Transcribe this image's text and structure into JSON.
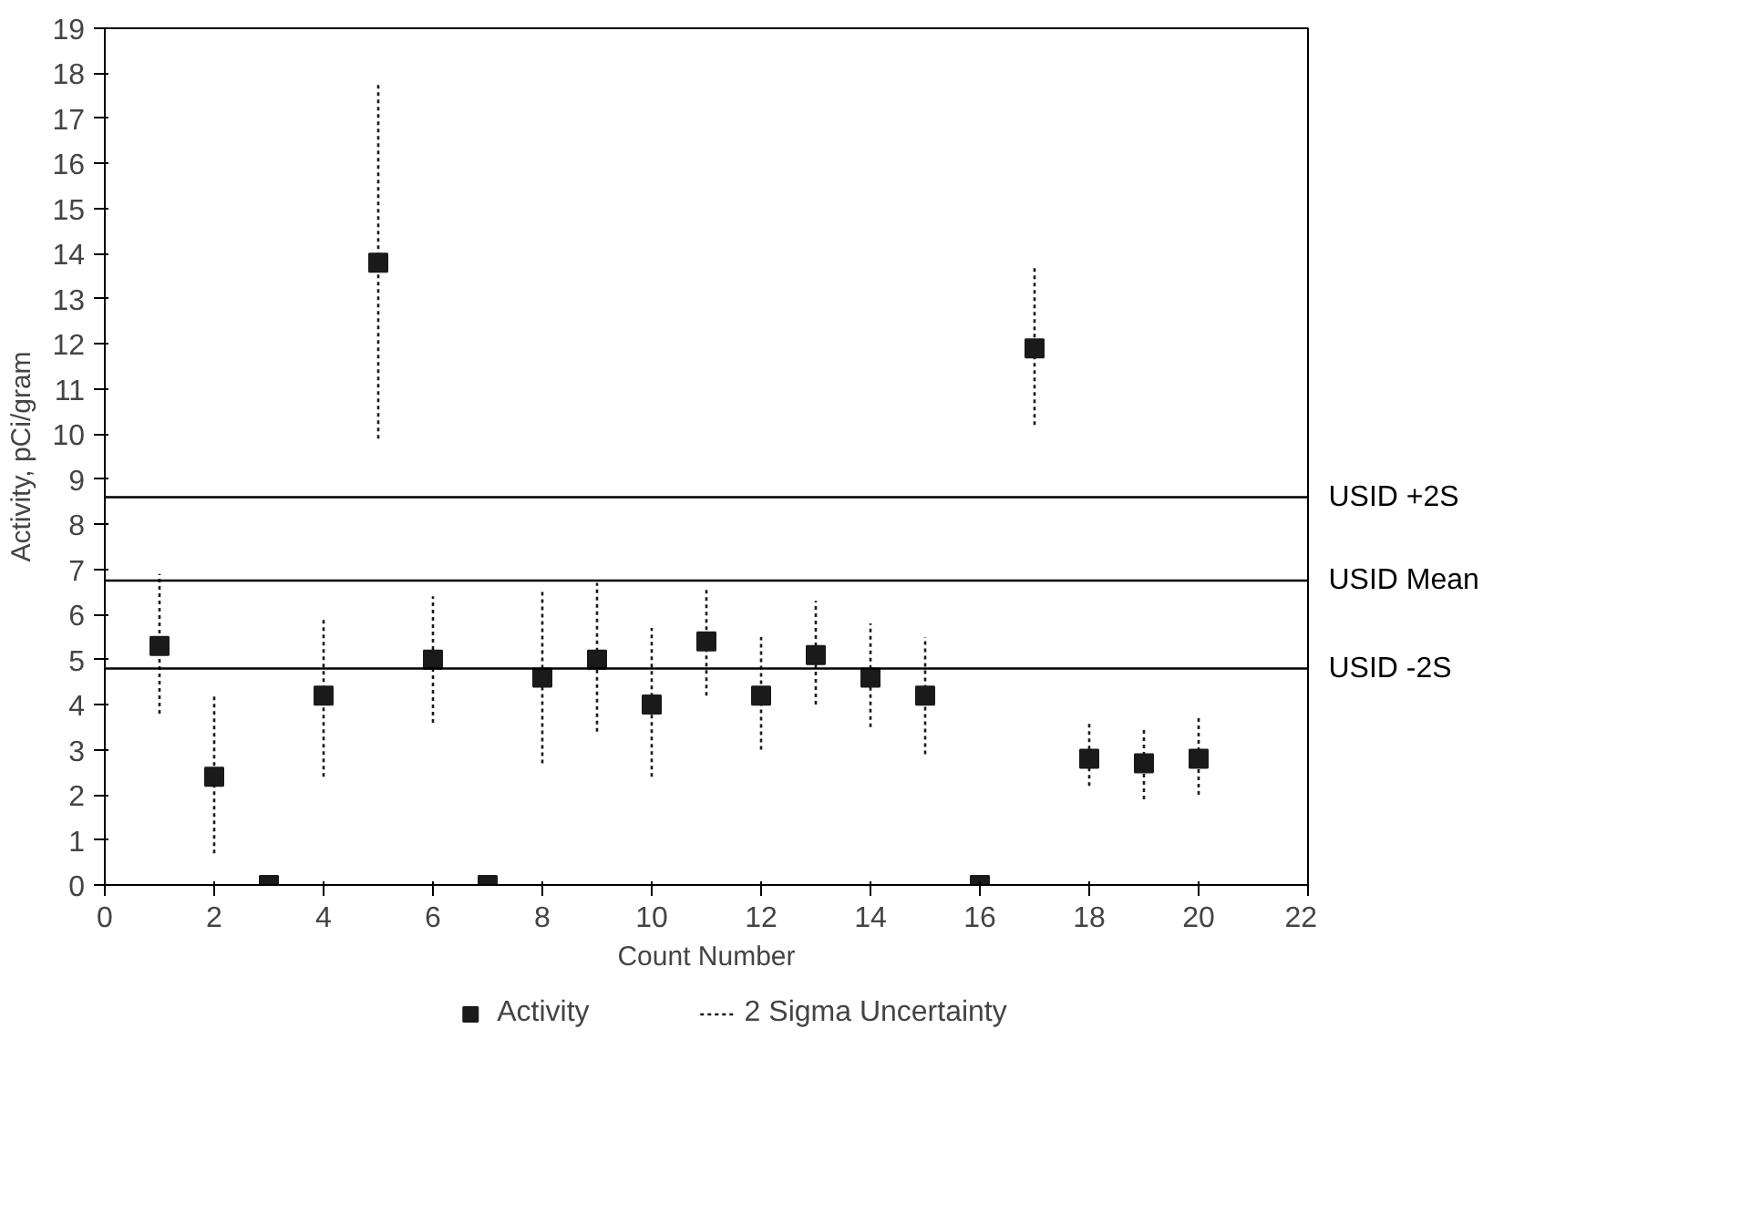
{
  "chart_data": {
    "type": "scatter",
    "xlabel": "Count Number",
    "ylabel": "Activity, pCi/gram",
    "x": [
      1,
      2,
      3,
      4,
      5,
      6,
      7,
      8,
      9,
      10,
      11,
      12,
      13,
      14,
      15,
      16,
      17,
      18,
      19,
      20
    ],
    "series": [
      {
        "name": "Activity",
        "color": "#1a1a1a",
        "values": [
          5.3,
          2.4,
          0,
          4.2,
          13.8,
          5.0,
          0,
          4.6,
          5.0,
          4.0,
          5.4,
          4.2,
          5.1,
          4.6,
          4.2,
          0,
          11.9,
          2.8,
          2.7,
          2.8
        ],
        "errors": [
          [
            3.8,
            6.9
          ],
          [
            0.7,
            4.2
          ],
          null,
          [
            2.4,
            5.9
          ],
          [
            9.9,
            17.8
          ],
          [
            3.6,
            6.4
          ],
          null,
          [
            2.7,
            6.5
          ],
          [
            3.4,
            6.7
          ],
          [
            2.4,
            5.7
          ],
          [
            4.2,
            6.6
          ],
          [
            3.0,
            5.5
          ],
          [
            4.0,
            6.3
          ],
          [
            3.5,
            5.8
          ],
          [
            2.9,
            5.5
          ],
          null,
          [
            10.2,
            13.7
          ],
          [
            2.2,
            3.6
          ],
          [
            1.9,
            3.5
          ],
          [
            2.0,
            3.7
          ]
        ]
      }
    ],
    "annotations": [
      "2 Sigma Uncertainty"
    ],
    "ref_lines": [
      {
        "axis": "y",
        "value": 8.6,
        "label": "USID +2S"
      },
      {
        "axis": "y",
        "value": 6.75,
        "label": "USID Mean"
      },
      {
        "axis": "y",
        "value": 4.8,
        "label": "USID -2S"
      }
    ],
    "xlim": [
      0,
      22
    ],
    "xticks": [
      0,
      2,
      4,
      6,
      8,
      10,
      12,
      14,
      16,
      18,
      20,
      22
    ],
    "ylim": [
      0,
      19
    ],
    "yticks": [
      0,
      1,
      2,
      3,
      4,
      5,
      6,
      7,
      8,
      9,
      10,
      11,
      12,
      13,
      14,
      15,
      16,
      17,
      18,
      19
    ],
    "marker": "square",
    "legend": "bottom",
    "grid": false
  }
}
